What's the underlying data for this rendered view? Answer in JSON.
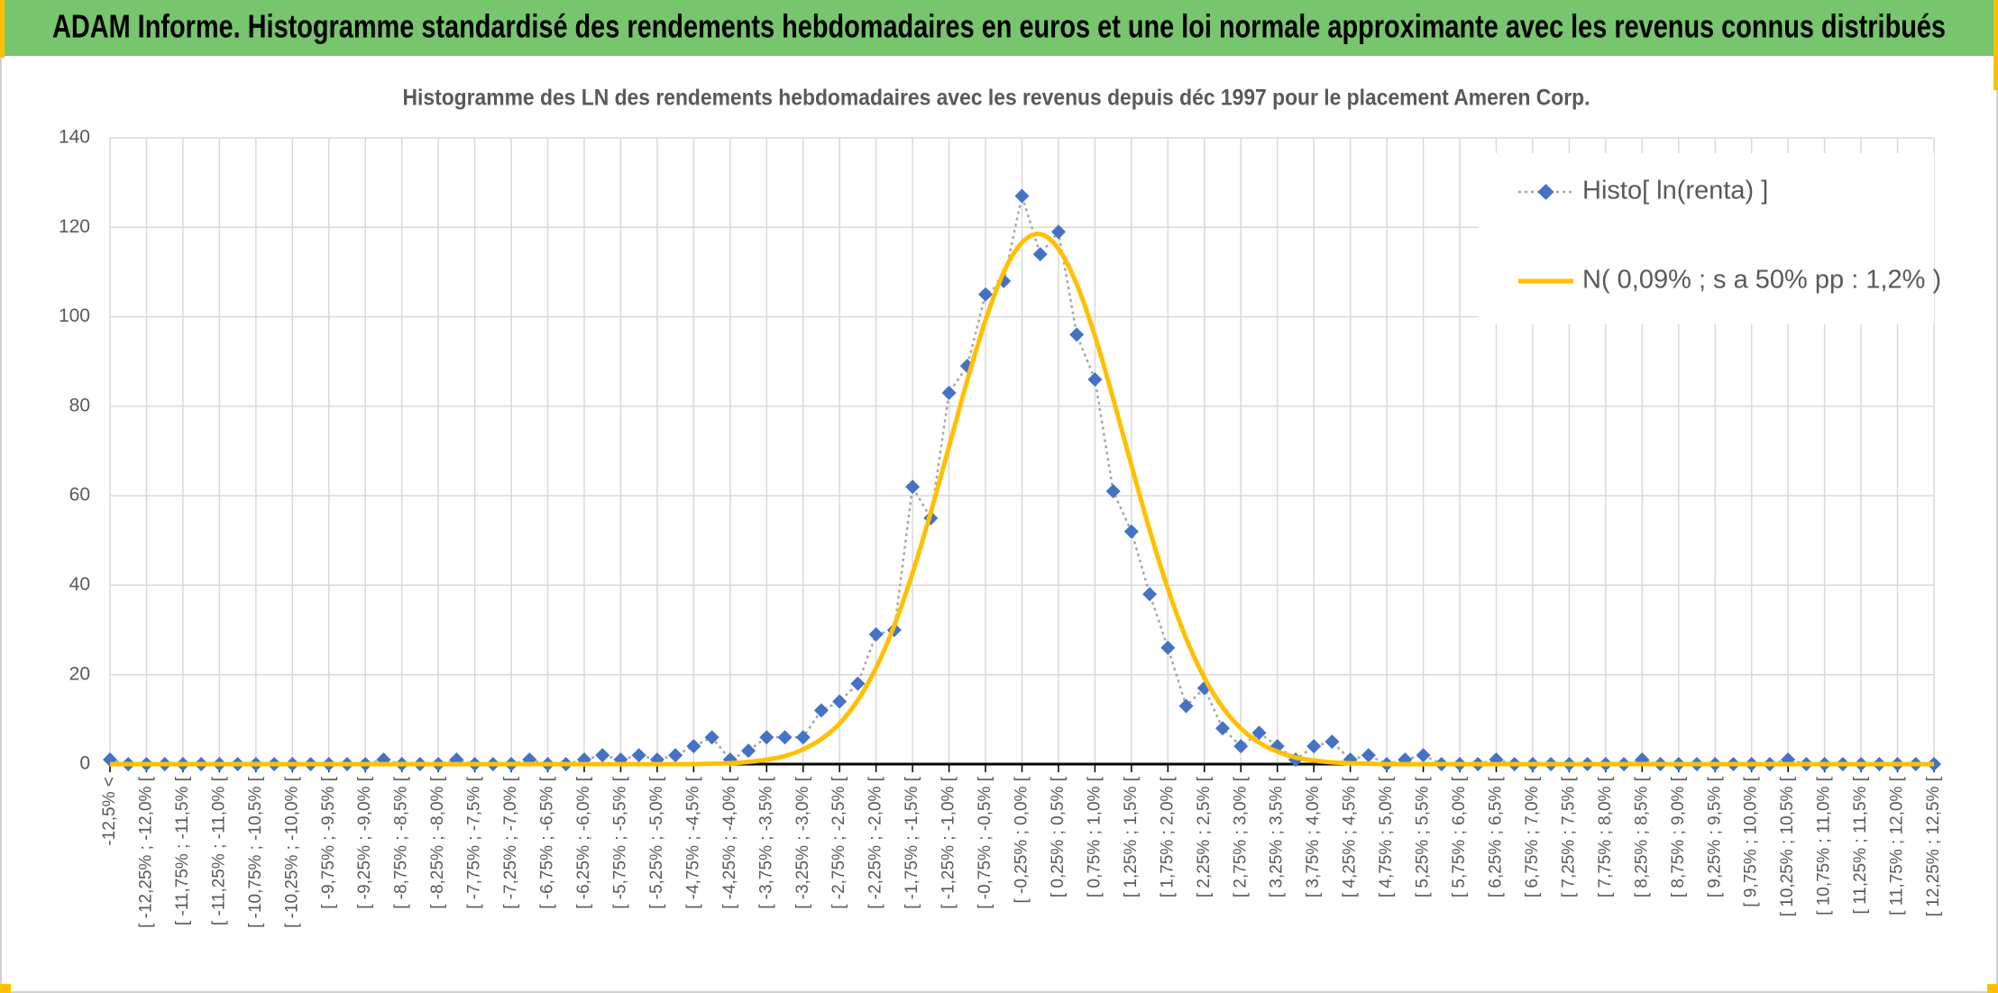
{
  "header": {
    "title": "ADAM Informe. Histogramme standardisé des rendements hebdomadaires en euros et une loi normale approximante avec les revenus connus distribués"
  },
  "chart_data": {
    "type": "line",
    "title": "Histogramme des LN des rendements hebdomadaires avec les revenus depuis déc 1997 pour le placement Ameren Corp.",
    "categories": [
      "-12,5% <",
      null,
      "[ -12,25% ; -12,0% [",
      null,
      "[ -11,75% ; -11,5% [",
      null,
      "[ -11,25% ; -11,0% [",
      null,
      "[ -10,75% ; -10,5% [",
      null,
      "[ -10,25% ; -10,0% [",
      null,
      "[ -9,75% ; -9,5% [",
      null,
      "[ -9,25% ; -9,0% [",
      null,
      "[ -8,75% ; -8,5% [",
      null,
      "[ -8,25% ; -8,0% [",
      null,
      "[ -7,75% ; -7,5% [",
      null,
      "[ -7,25% ; -7,0% [",
      null,
      "[ -6,75% ; -6,5% [",
      null,
      "[ -6,25% ; -6,0% [",
      null,
      "[ -5,75% ; -5,5% [",
      null,
      "[ -5,25% ; -5,0% [",
      null,
      "[ -4,75% ; -4,5% [",
      null,
      "[ -4,25% ; -4,0% [",
      null,
      "[ -3,75% ; -3,5% [",
      null,
      "[ -3,25% ; -3,0% [",
      null,
      "[ -2,75% ; -2,5% [",
      null,
      "[ -2,25% ; -2,0% [",
      null,
      "[ -1,75% ; -1,5% [",
      null,
      "[ -1,25% ; -1,0% [",
      null,
      "[ -0,75% ; -0,5% [",
      null,
      "[ -0,25% ; 0,0% [",
      null,
      "[ 0,25% ; 0,5% [",
      null,
      "[ 0,75% ; 1,0% [",
      null,
      "[ 1,25% ; 1,5% [",
      null,
      "[ 1,75% ; 2,0% [",
      null,
      "[ 2,25% ; 2,5% [",
      null,
      "[ 2,75% ; 3,0% [",
      null,
      "[ 3,25% ; 3,5% [",
      null,
      "[ 3,75% ; 4,0% [",
      null,
      "[ 4,25% ; 4,5% [",
      null,
      "[ 4,75% ; 5,0% [",
      null,
      "[ 5,25% ; 5,5% [",
      null,
      "[ 5,75% ; 6,0% [",
      null,
      "[ 6,25% ; 6,5% [",
      null,
      "[ 6,75% ; 7,0% [",
      null,
      "[ 7,25% ; 7,5% [",
      null,
      "[ 7,75% ; 8,0% [",
      null,
      "[ 8,25% ; 8,5% [",
      null,
      "[ 8,75% ; 9,0% [",
      null,
      "[ 9,25% ; 9,5% [",
      null,
      "[ 9,75% ; 10,0% [",
      null,
      "[ 10,25% ; 10,5% [",
      null,
      "[ 10,75% ; 11,0% [",
      null,
      "[ 11,25% ; 11,5% [",
      null,
      "[ 11,75% ; 12,0% [",
      null,
      "[ 12,25% ; 12,5% ["
    ],
    "series": [
      {
        "name": "Histo[ ln(renta) ]",
        "color": "#4472c4",
        "line_color": "#a6a6a6",
        "line_style": "dotted",
        "marker": "diamond",
        "values": [
          1,
          0,
          0,
          0,
          0,
          0,
          0,
          0,
          0,
          0,
          0,
          0,
          0,
          0,
          0,
          1,
          0,
          0,
          0,
          1,
          0,
          0,
          0,
          1,
          0,
          0,
          1,
          2,
          1,
          2,
          1,
          2,
          4,
          6,
          1,
          3,
          6,
          6,
          6,
          12,
          14,
          18,
          29,
          30,
          62,
          55,
          83,
          89,
          105,
          108,
          127,
          114,
          119,
          96,
          86,
          61,
          52,
          38,
          26,
          13,
          17,
          8,
          4,
          7,
          4,
          1,
          4,
          5,
          1,
          2,
          0,
          1,
          2,
          0,
          0,
          0,
          1,
          0,
          0,
          0,
          0,
          0,
          0,
          0,
          1,
          0,
          0,
          0,
          0,
          0,
          0,
          0,
          1,
          0,
          0,
          0,
          0,
          0,
          0,
          0,
          0
        ]
      },
      {
        "name": "N( 0,09% ; s a 50% pp : 1,2% )",
        "color": "#ffc000",
        "line_style": "solid",
        "values": [
          0,
          0,
          0,
          0,
          0,
          0,
          0,
          0,
          0,
          0,
          0,
          0,
          0,
          0,
          0,
          0,
          0,
          0,
          0,
          0,
          0,
          0,
          0,
          0,
          0,
          0,
          0,
          0,
          0,
          0,
          0,
          0,
          0,
          0.1,
          0.2,
          0.5,
          1,
          1.8,
          3.3,
          5.6,
          9.1,
          14.3,
          21.5,
          31,
          42.7,
          56.3,
          71,
          85.8,
          99.2,
          110,
          116.6,
          118.5,
          115.2,
          107.3,
          95.7,
          81.7,
          66.8,
          52.3,
          39.2,
          28.1,
          19.3,
          12.7,
          8,
          4.8,
          2.8,
          1.5,
          0.8,
          0.4,
          0.2,
          0.1,
          0,
          0,
          0,
          0,
          0,
          0,
          0,
          0,
          0,
          0,
          0,
          0,
          0,
          0,
          0,
          0,
          0,
          0,
          0,
          0,
          0,
          0,
          0,
          0,
          0,
          0,
          0,
          0,
          0,
          0,
          0
        ]
      }
    ],
    "ylim": [
      0,
      140
    ],
    "yticks": [
      0,
      20,
      40,
      60,
      80,
      100,
      120,
      140
    ],
    "grid": true,
    "legend": "top-right"
  }
}
